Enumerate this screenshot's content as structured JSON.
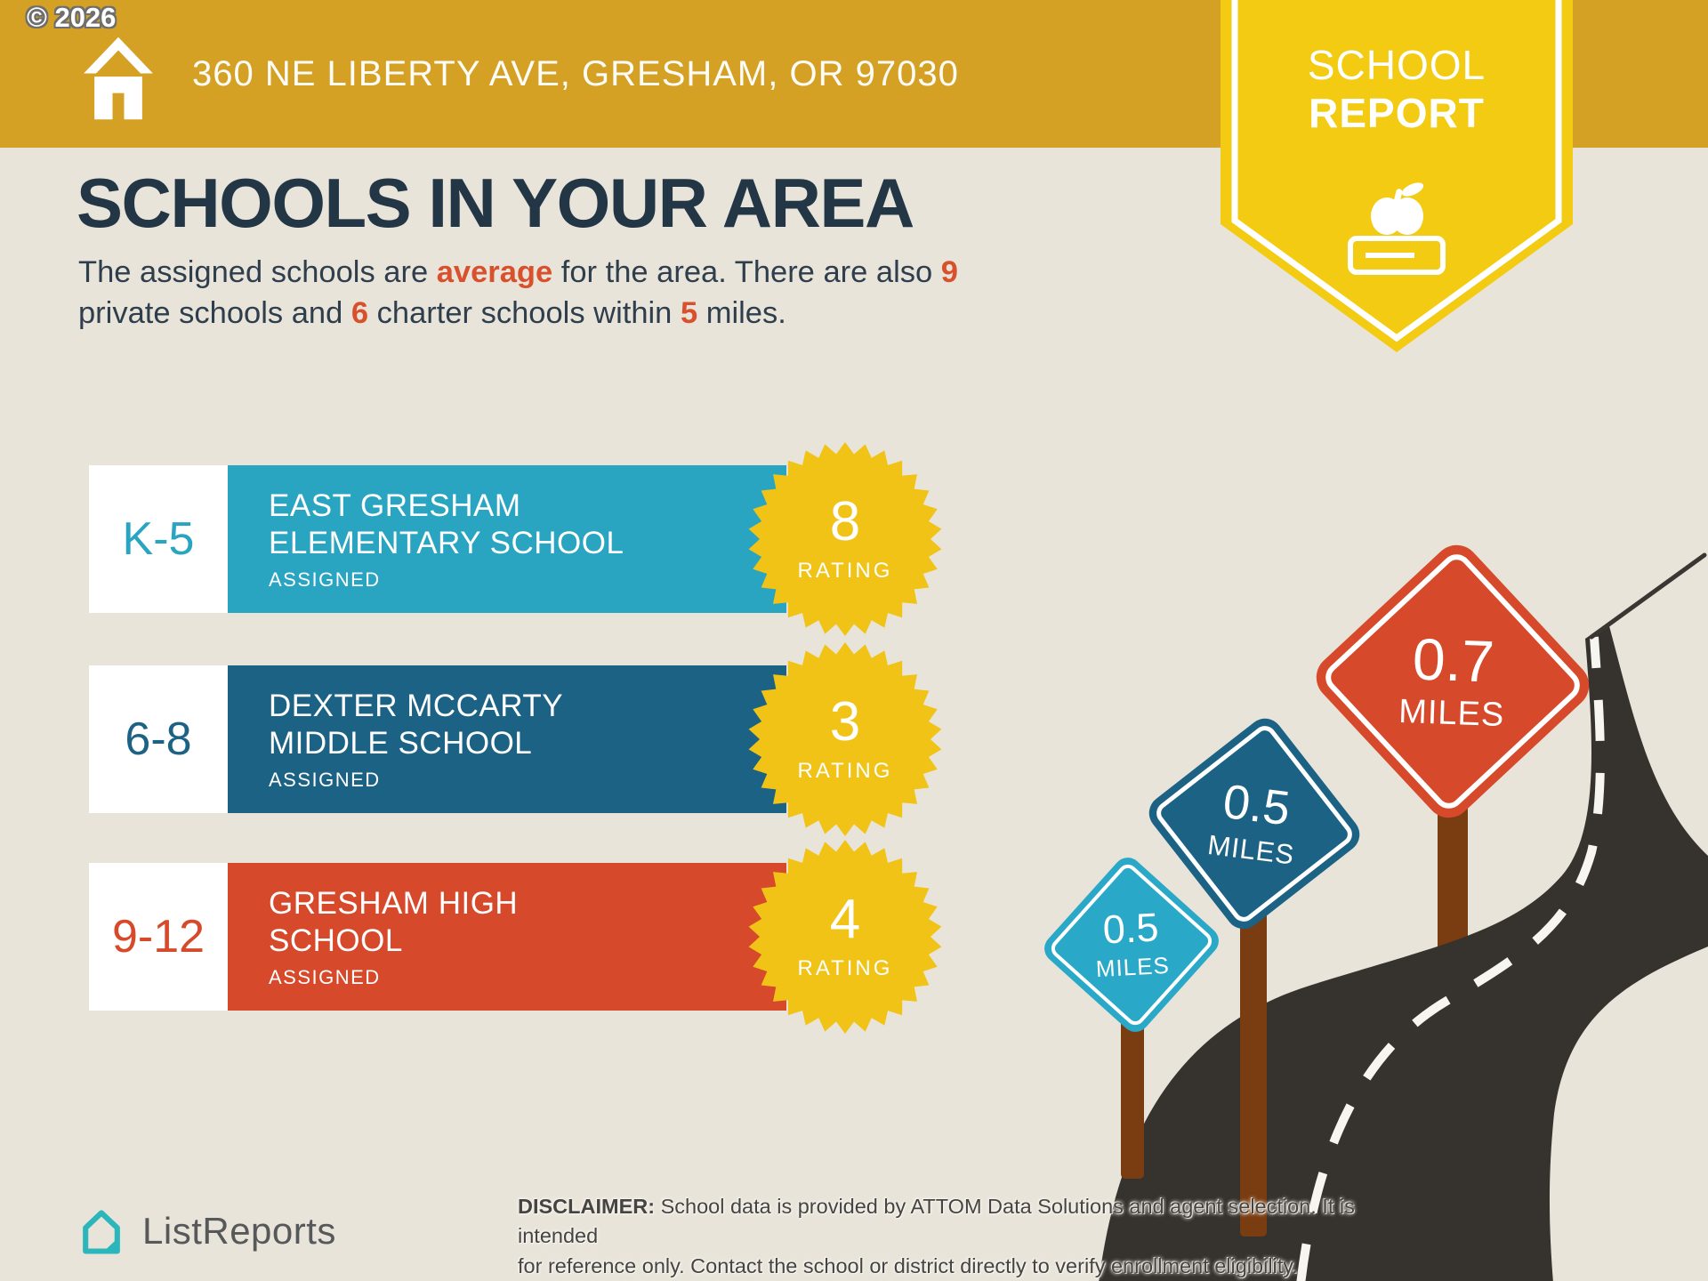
{
  "watermark": "© 2026",
  "header": {
    "address": "360 NE LIBERTY AVE, GRESHAM, OR 97030"
  },
  "report_badge": {
    "line1": "SCHOOL",
    "line2": "REPORT"
  },
  "page": {
    "title": "SCHOOLS IN YOUR AREA"
  },
  "intro": {
    "line1_part1": "The assigned schools are ",
    "line1_hl1": "average",
    "line1_part2": " for the area. There are also ",
    "line1_hl2": "9",
    "line2_part1": "private schools and ",
    "line2_hl1": "6",
    "line2_part2": " charter schools within ",
    "line2_hl2": "5",
    "line2_part3": " miles."
  },
  "schools": [
    {
      "grades": "K-5",
      "name_line1": "EAST GRESHAM",
      "name_line2": "ELEMENTARY SCHOOL",
      "status": "ASSIGNED",
      "rating": "8",
      "rating_label": "RATING",
      "color": "#29A5C2"
    },
    {
      "grades": "6-8",
      "name_line1": "DEXTER MCCARTY",
      "name_line2": "MIDDLE SCHOOL",
      "status": "ASSIGNED",
      "rating": "3",
      "rating_label": "RATING",
      "color": "#1C6284"
    },
    {
      "grades": "9-12",
      "name_line1": "GRESHAM HIGH",
      "name_line2": "SCHOOL",
      "status": "ASSIGNED",
      "rating": "4",
      "rating_label": "RATING",
      "color": "#D7492B"
    }
  ],
  "signs": [
    {
      "distance": "0.5",
      "unit": "MILES",
      "color": "#2AA8C7"
    },
    {
      "distance": "0.5",
      "unit": "MILES",
      "color": "#1C6284"
    },
    {
      "distance": "0.7",
      "unit": "MILES",
      "color": "#D7492B"
    }
  ],
  "footer": {
    "brand": "ListReports",
    "disclaimer_bold": "DISCLAIMER:",
    "disclaimer_line1": " School data is provided by ATTOM Data Solutions and agent selection. It is intended",
    "disclaimer_line2": "for reference only. Contact the school or district directly to verify enrollment eligibility."
  },
  "colors": {
    "background": "#E9E4DA",
    "banner_gold": "#D5A124",
    "badge_yellow": "#F2CB12",
    "starburst_yellow": "#F0C316",
    "highlight_orange": "#D8502C",
    "heading_navy": "#233645",
    "road_dark": "#36332F",
    "post_brown": "#7A3D11",
    "logo_teal": "#2BB6BC"
  }
}
